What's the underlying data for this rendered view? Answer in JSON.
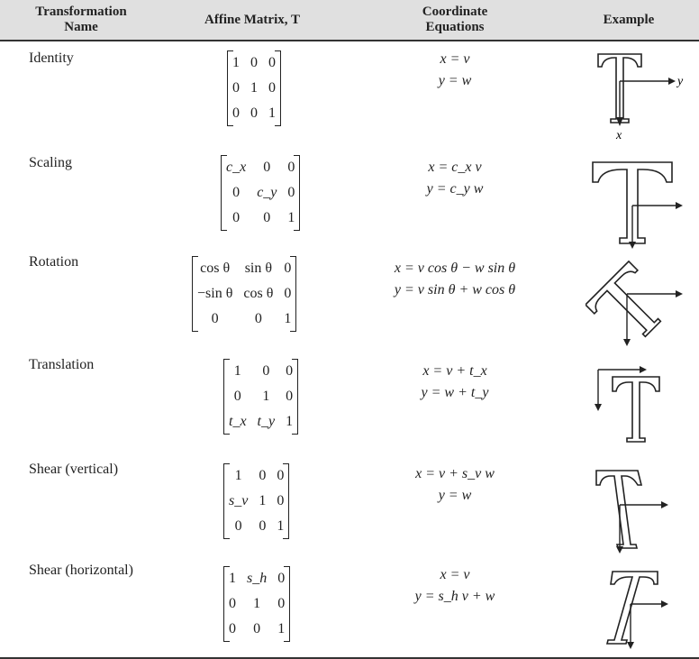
{
  "header": {
    "col1_line1": "Transformation",
    "col1_line2": "Name",
    "col2": "Affine Matrix, T",
    "col3_line1": "Coordinate",
    "col3_line2": "Equations",
    "col4": "Example"
  },
  "rows": [
    {
      "name": "Identity",
      "matrix": [
        [
          "1",
          "0",
          "0"
        ],
        [
          "0",
          "1",
          "0"
        ],
        [
          "0",
          "0",
          "1"
        ]
      ],
      "eq1": "x = v",
      "eq2": "y = w",
      "axis_y": "y",
      "axis_x": "x"
    },
    {
      "name": "Scaling",
      "matrix": [
        [
          "c_x",
          "0",
          "0"
        ],
        [
          "0",
          "c_y",
          "0"
        ],
        [
          "0",
          "0",
          "1"
        ]
      ],
      "eq1": "x = c_x v",
      "eq2": "y = c_y w"
    },
    {
      "name": "Rotation",
      "matrix": [
        [
          "cos θ",
          "sin θ",
          "0"
        ],
        [
          "−sin θ",
          "cos θ",
          "0"
        ],
        [
          "0",
          "0",
          "1"
        ]
      ],
      "eq1": "x = v cos θ − w sin θ",
      "eq2": "y = v sin θ + w cos θ"
    },
    {
      "name": "Translation",
      "matrix": [
        [
          "1",
          "0",
          "0"
        ],
        [
          "0",
          "1",
          "0"
        ],
        [
          "t_x",
          "t_y",
          "1"
        ]
      ],
      "eq1": "x = v + t_x",
      "eq2": "y = w + t_y"
    },
    {
      "name": "Shear (vertical)",
      "matrix": [
        [
          "1",
          "0",
          "0"
        ],
        [
          "s_v",
          "1",
          "0"
        ],
        [
          "0",
          "0",
          "1"
        ]
      ],
      "eq1": "x = v + s_v w",
      "eq2": "y = w"
    },
    {
      "name": "Shear (horizontal)",
      "matrix": [
        [
          "1",
          "s_h",
          "0"
        ],
        [
          "0",
          "1",
          "0"
        ],
        [
          "0",
          "0",
          "1"
        ]
      ],
      "eq1": "x = v",
      "eq2": "y = s_h v + w"
    }
  ]
}
